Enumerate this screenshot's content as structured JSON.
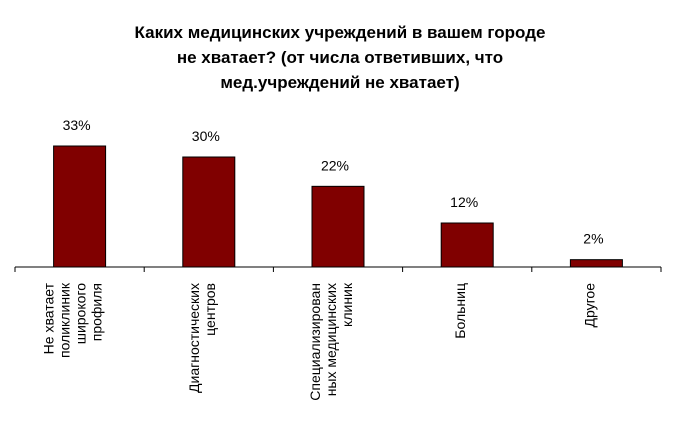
{
  "chart_data": {
    "type": "bar",
    "title_lines": [
      "Каких медицинских учреждений в вашем городе",
      "не хватает? (от числа ответивших, что",
      "мед.учреждений не хватает)"
    ],
    "categories": [
      [
        "Не хватает",
        "поликлиник",
        "широкого",
        "профиля"
      ],
      [
        "Диагностических",
        "центров"
      ],
      [
        "Специализирован",
        "ных медицинских",
        "клиник"
      ],
      [
        "Больниц"
      ],
      [
        "Другое"
      ]
    ],
    "values": [
      33,
      30,
      22,
      12,
      2
    ],
    "value_labels": [
      "33%",
      "30%",
      "22%",
      "12%",
      "2%"
    ],
    "ylim": [
      0,
      33
    ],
    "grid": false,
    "legend": "none",
    "bar_color": "#800000"
  }
}
